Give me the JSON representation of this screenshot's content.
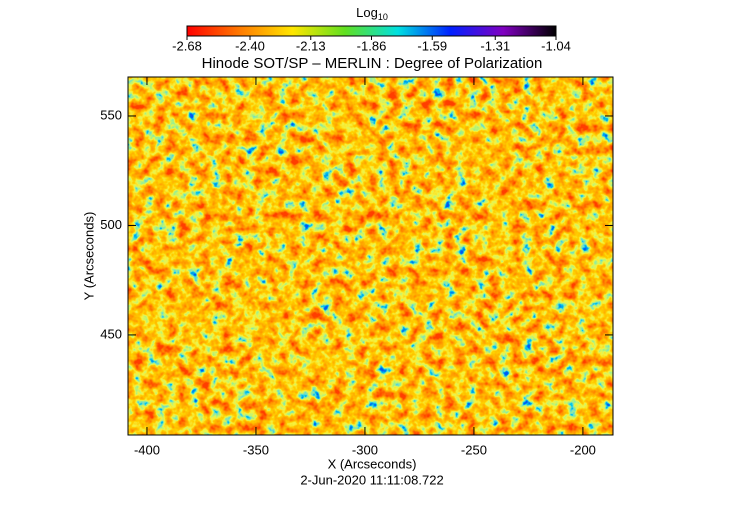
{
  "chart_data": {
    "type": "heatmap",
    "title": "Hinode SOT/SP – MERLIN : Degree of Polarization",
    "xlabel": "X (Arcseconds)",
    "ylabel": "Y (Arcseconds)",
    "footer": "2-Jun-2020 11:11:08.722",
    "colorbar_label": "Log",
    "colorbar_label_subscript": "10",
    "colorbar_lim": [
      -2.68,
      -1.04
    ],
    "colorbar_ticks": [
      -2.68,
      {
        "value": -2.4,
        "label": "-2.40"
      },
      -2.13,
      -1.86,
      -1.59,
      -1.31,
      -1.04
    ],
    "colormap": [
      "#ff0000",
      "#ff7a00",
      "#ffe600",
      "#60e020",
      "#00e0e0",
      "#0020ff",
      "#8000c0",
      "#000000"
    ],
    "xlim": [
      -408.7,
      -186.2
    ],
    "xticks": [
      -400,
      -350,
      -300,
      -250,
      -200
    ],
    "ylim": [
      404.3,
      567.8
    ],
    "yticks": [
      450,
      500,
      550
    ]
  }
}
